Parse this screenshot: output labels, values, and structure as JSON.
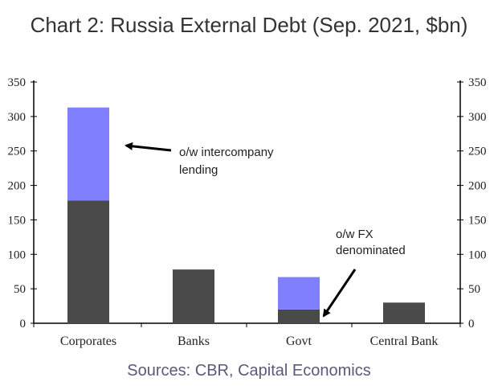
{
  "title": "Chart 2: Russia External Debt (Sep. 2021, $bn)",
  "source": "Sources: CBR, Capital Economics",
  "colors": {
    "base": "#4a4a4a",
    "highlight": "#8080ff",
    "axis": "#000000"
  },
  "chart_data": {
    "type": "bar",
    "stacked": true,
    "categories": [
      "Corporates",
      "Banks",
      "Govt",
      "Central Bank"
    ],
    "series": [
      {
        "values": [
          178,
          78,
          20,
          30
        ]
      },
      {
        "values": [
          135,
          0,
          47,
          0
        ]
      }
    ],
    "ylim": [
      0,
      350
    ],
    "yticks": [
      "0",
      "50",
      "100",
      "150",
      "200",
      "250",
      "300",
      "350"
    ],
    "secondary_axis_ticks": [
      "0",
      "50",
      "100",
      "150",
      "200",
      "250",
      "300",
      "350"
    ],
    "grid": false,
    "annotations": [
      {
        "lines": [
          "o/w intercompany",
          "lending"
        ]
      },
      {
        "lines": [
          "o/w FX",
          "denominated"
        ]
      }
    ]
  }
}
